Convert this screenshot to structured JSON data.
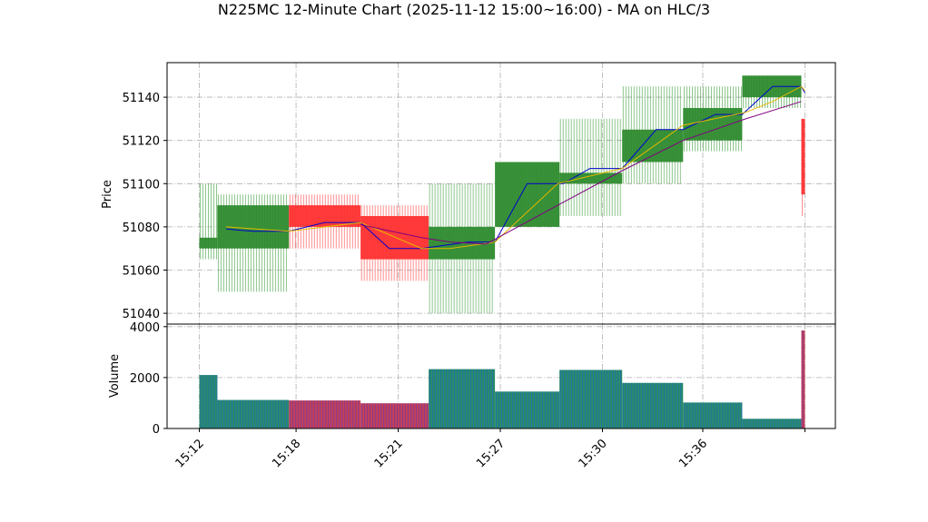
{
  "chart_data": {
    "type": "candlestick",
    "title": "N225MC 12-Minute Chart (2025-11-12 15:00~16:00) - MA on HLC/3",
    "price_panel": {
      "ylabel": "Price",
      "ylim": [
        51035,
        51156
      ],
      "yticks": [
        51040,
        51060,
        51080,
        51100,
        51120,
        51140
      ]
    },
    "volume_panel": {
      "ylabel": "Volume",
      "ylim": [
        0,
        4100
      ],
      "yticks": [
        0,
        2000,
        4000
      ]
    },
    "x_axis": {
      "ticks": [
        {
          "time": "15:12",
          "pos": 0
        },
        {
          "time": "15:18",
          "pos": 5.4
        },
        {
          "time": "15:21",
          "pos": 11.1
        },
        {
          "time": "15:27",
          "pos": 16.8
        },
        {
          "time": "15:30",
          "pos": 22.5
        },
        {
          "time": "15:36",
          "pos": 28.1
        },
        {
          "time": "",
          "pos": 33.8
        }
      ],
      "xlim": [
        -1.8,
        35.5
      ]
    },
    "candles": [
      {
        "x0": 0,
        "x1": 1,
        "open": 51070,
        "high": 51100,
        "low": 51065,
        "close": 51075,
        "volume": 2100,
        "dir": "up"
      },
      {
        "x0": 1,
        "x1": 5,
        "open": 51070,
        "high": 51095,
        "low": 51050,
        "close": 51090,
        "volume": 1120,
        "dir": "up"
      },
      {
        "x0": 5,
        "x1": 9,
        "open": 51090,
        "high": 51095,
        "low": 51070,
        "close": 51080,
        "volume": 1100,
        "dir": "down"
      },
      {
        "x0": 9,
        "x1": 12.8,
        "open": 51085,
        "high": 51090,
        "low": 51055,
        "close": 51065,
        "volume": 990,
        "dir": "down"
      },
      {
        "x0": 12.8,
        "x1": 16.5,
        "open": 51065,
        "high": 51100,
        "low": 51040,
        "close": 51080,
        "volume": 2330,
        "dir": "up"
      },
      {
        "x0": 16.5,
        "x1": 20.1,
        "open": 51080,
        "high": 51110,
        "low": 51080,
        "close": 51110,
        "volume": 1450,
        "dir": "up"
      },
      {
        "x0": 20.1,
        "x1": 23.6,
        "open": 51100,
        "high": 51130,
        "low": 51085,
        "close": 51105,
        "volume": 2300,
        "dir": "up"
      },
      {
        "x0": 23.6,
        "x1": 27.0,
        "open": 51110,
        "high": 51145,
        "low": 51100,
        "close": 51125,
        "volume": 1790,
        "dir": "up"
      },
      {
        "x0": 27.0,
        "x1": 30.3,
        "open": 51120,
        "high": 51145,
        "low": 51115,
        "close": 51135,
        "volume": 1020,
        "dir": "up"
      },
      {
        "x0": 30.3,
        "x1": 33.6,
        "open": 51140,
        "high": 51150,
        "low": 51135,
        "close": 51150,
        "volume": 380,
        "dir": "up"
      },
      {
        "x0": 33.6,
        "x1": 33.8,
        "open": 51130,
        "high": 51130,
        "low": 51085,
        "close": 51095,
        "volume": 3850,
        "dir": "down"
      }
    ],
    "ma_lines": [
      {
        "color": "#0000cc",
        "points": [
          [
            1.5,
            51079
          ],
          [
            3,
            51078
          ],
          [
            5,
            51078
          ],
          [
            7,
            51082
          ],
          [
            9,
            51082
          ],
          [
            10.6,
            51070
          ],
          [
            12.4,
            51070
          ],
          [
            15,
            51073
          ],
          [
            16.5,
            51073
          ],
          [
            18.3,
            51100
          ],
          [
            20.3,
            51100
          ],
          [
            21.8,
            51107
          ],
          [
            23.6,
            51107
          ],
          [
            25.5,
            51125
          ],
          [
            27,
            51125
          ],
          [
            28.8,
            51132
          ],
          [
            30.3,
            51132
          ],
          [
            32,
            51145
          ],
          [
            33.6,
            51145
          ],
          [
            33.8,
            51142
          ]
        ]
      },
      {
        "color": "#e6b800",
        "points": [
          [
            1.5,
            51080
          ],
          [
            5,
            51078
          ],
          [
            9,
            51082
          ],
          [
            12.4,
            51070
          ],
          [
            14,
            51070
          ],
          [
            16.5,
            51073
          ],
          [
            20,
            51100
          ],
          [
            23.6,
            51107
          ],
          [
            27,
            51127
          ],
          [
            30.5,
            51133
          ],
          [
            32,
            51138
          ],
          [
            33.6,
            51145
          ],
          [
            33.8,
            51143
          ]
        ]
      },
      {
        "color": "#800080",
        "points": [
          [
            9,
            51081
          ],
          [
            12.4,
            51075
          ],
          [
            14,
            51073
          ],
          [
            16,
            51072
          ],
          [
            20,
            51090
          ],
          [
            23.6,
            51106
          ],
          [
            27,
            51120
          ],
          [
            30.5,
            51130
          ],
          [
            33.6,
            51138
          ]
        ]
      }
    ]
  }
}
